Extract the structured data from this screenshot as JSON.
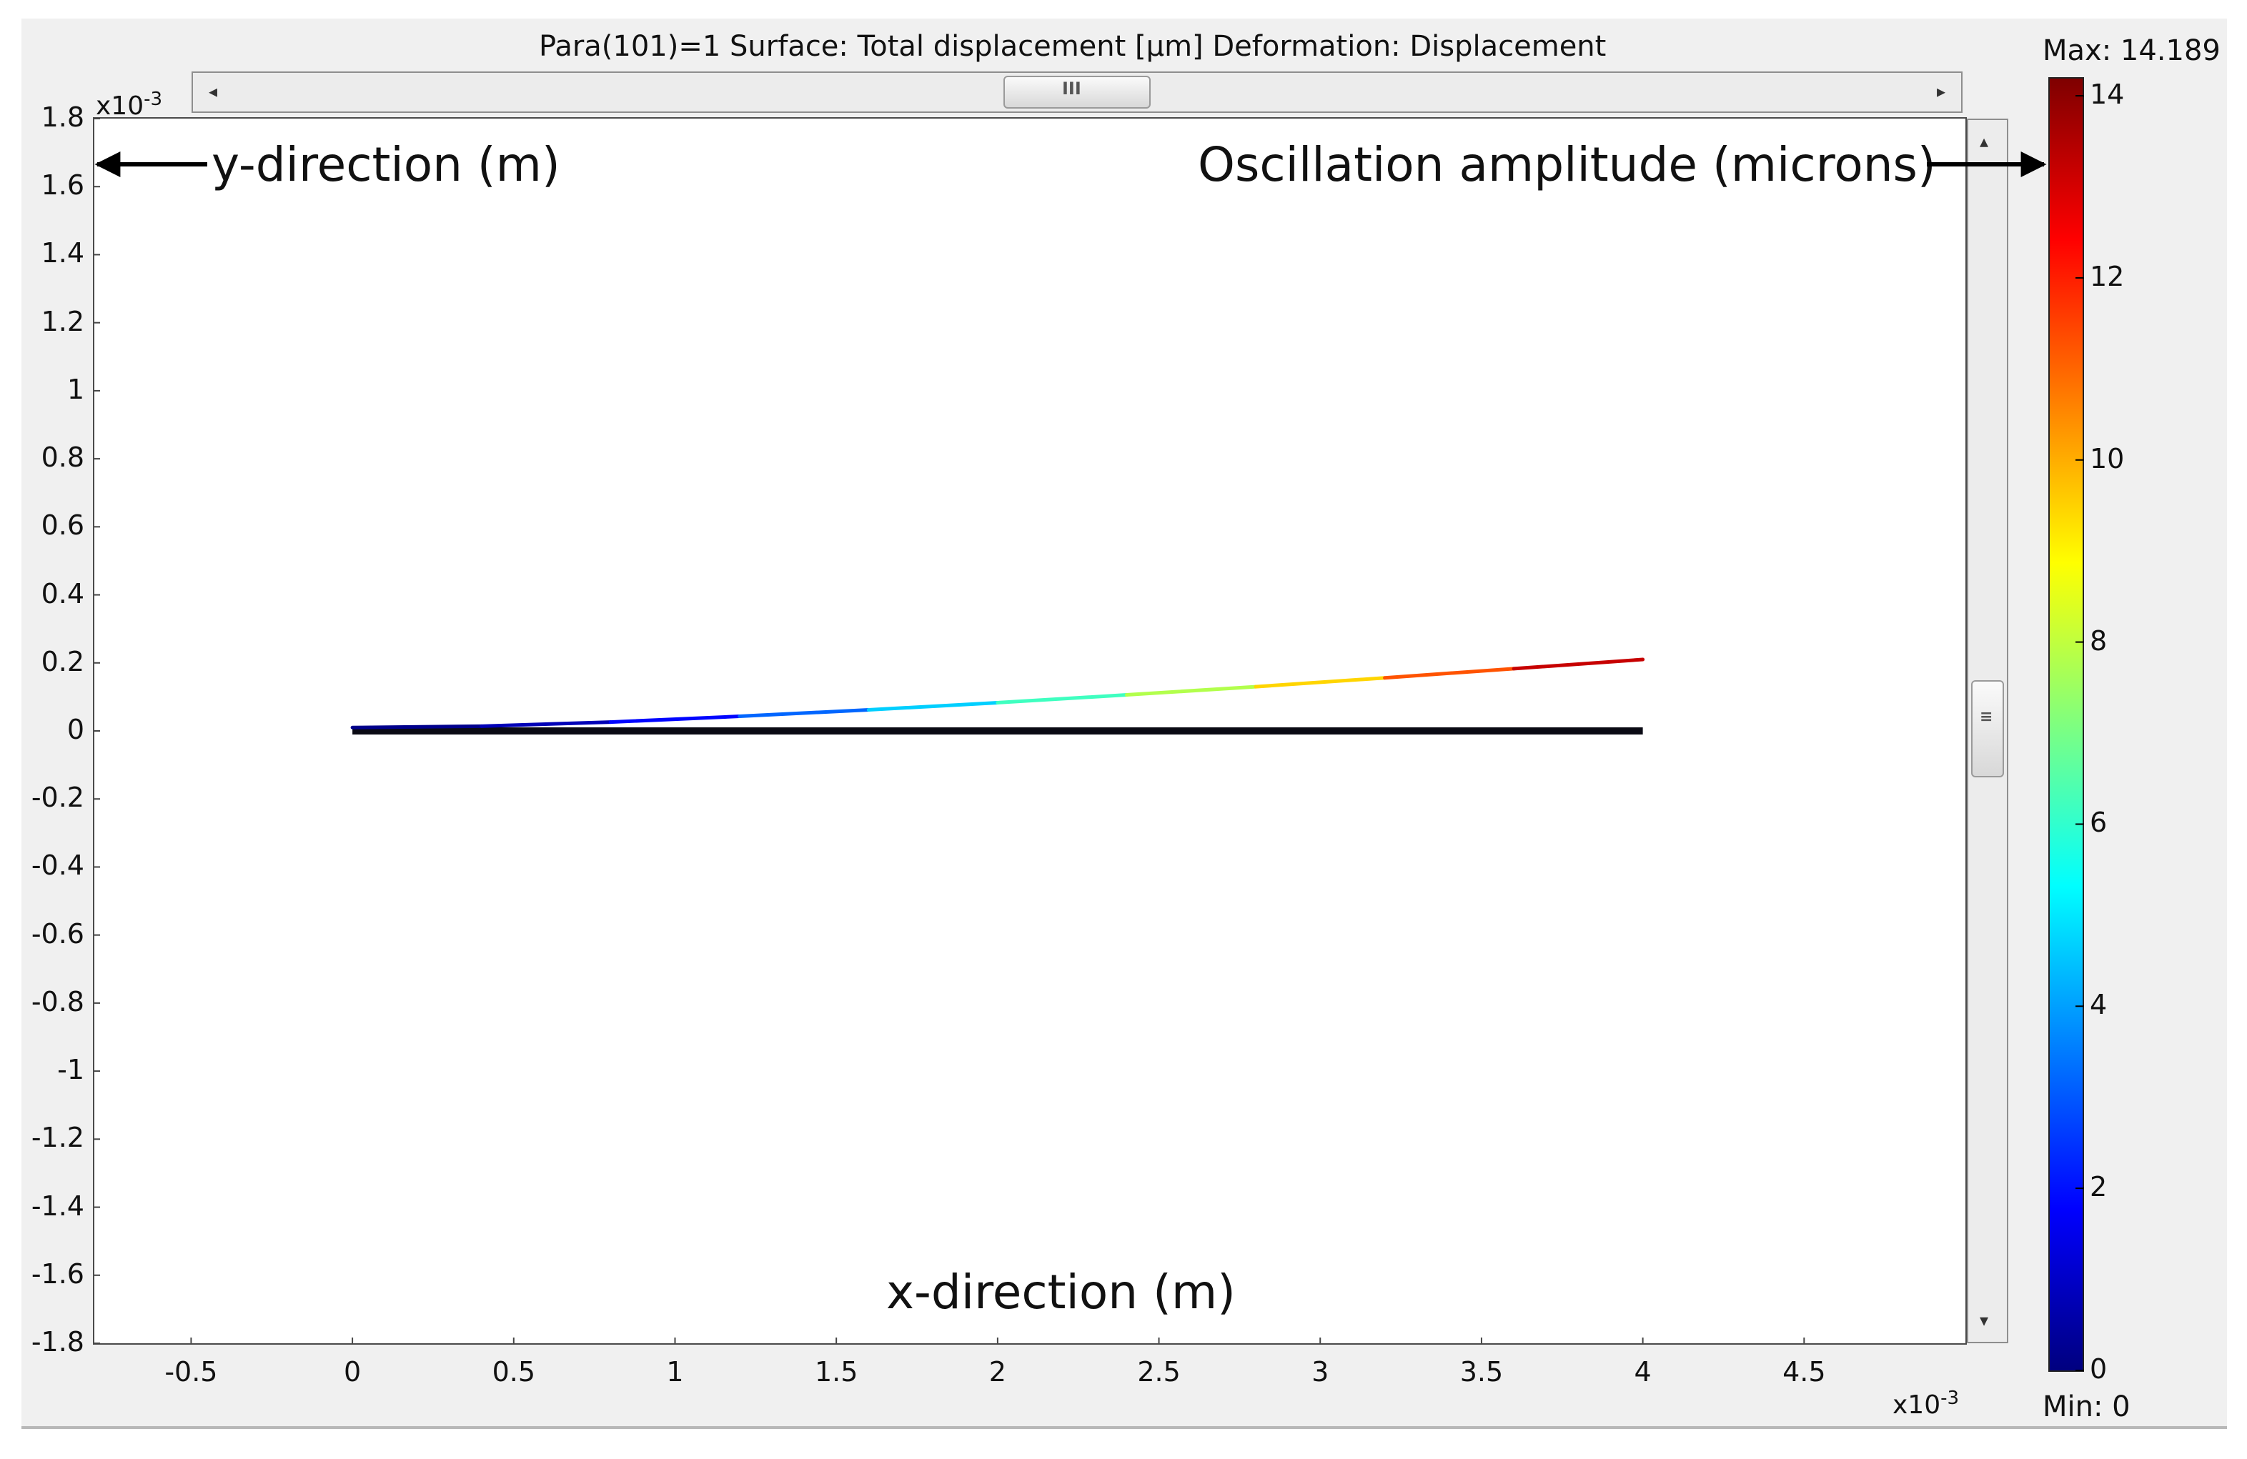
{
  "header": {
    "title": "Para(101)=1    Surface: Total displacement [µm]   Deformation: Displacement"
  },
  "chart_data": {
    "type": "line",
    "title": "Para(101)=1    Surface: Total displacement [µm]   Deformation: Displacement",
    "xlabel": "x-direction (m)",
    "ylabel": "y-direction (m)",
    "x_multiplier": "x10",
    "x_multiplier_exp": "-3",
    "y_multiplier": "x10",
    "y_multiplier_exp": "-3",
    "xlim": [
      -0.8,
      5.0
    ],
    "ylim": [
      -1.8,
      1.8
    ],
    "x_ticks": [
      -0.5,
      0,
      0.5,
      1,
      1.5,
      2,
      2.5,
      3,
      3.5,
      4,
      4.5
    ],
    "x_tick_labels": [
      "-0.5",
      "0",
      "0.5",
      "1",
      "1.5",
      "2",
      "2.5",
      "3",
      "3.5",
      "4",
      "4.5"
    ],
    "y_ticks": [
      1.8,
      1.6,
      1.4,
      1.2,
      1,
      0.8,
      0.6,
      0.4,
      0.2,
      0,
      -0.2,
      -0.4,
      -0.6,
      -0.8,
      -1,
      -1.2,
      -1.4,
      -1.6,
      -1.8
    ],
    "y_tick_labels": [
      "1.8",
      "1.6",
      "1.4",
      "1.2",
      "1",
      "0.8",
      "0.6",
      "0.4",
      "0.2",
      "0",
      "-0.2",
      "-0.4",
      "-0.6",
      "-0.8",
      "-1",
      "-1.2",
      "-1.4",
      "-1.6",
      "-1.8"
    ],
    "series": [
      {
        "x": [
          0,
          0.4,
          0.8,
          1.2,
          1.6,
          2.0,
          2.4,
          2.8,
          3.2,
          3.6,
          4.0
        ],
        "y": [
          0.01,
          0.014,
          0.026,
          0.043,
          0.062,
          0.083,
          0.106,
          0.13,
          0.156,
          0.183,
          0.21
        ],
        "displacement": [
          0,
          0.35,
          1.2,
          2.5,
          3.9,
          5.4,
          7.0,
          8.6,
          10.3,
          12.2,
          14.189
        ]
      },
      {
        "x": [
          0,
          4.0
        ],
        "y": [
          0,
          0
        ]
      }
    ],
    "annotations": {
      "amplitude_label": "Oscillation amplitude (microns)"
    },
    "colorbar": {
      "max_label": "Max: 14.189",
      "min_label": "Min: 0",
      "min": 0,
      "max": 14.189,
      "ticks": [
        0,
        2,
        4,
        6,
        8,
        10,
        12,
        14
      ],
      "tick_labels": [
        "0",
        "2",
        "4",
        "6",
        "8",
        "10",
        "12",
        "14"
      ],
      "colormap": [
        "#00007f",
        "#0000ff",
        "#007fff",
        "#00ffff",
        "#7fff7f",
        "#ffff00",
        "#ff7f00",
        "#ff0000",
        "#7f0000"
      ]
    },
    "grid": false
  }
}
